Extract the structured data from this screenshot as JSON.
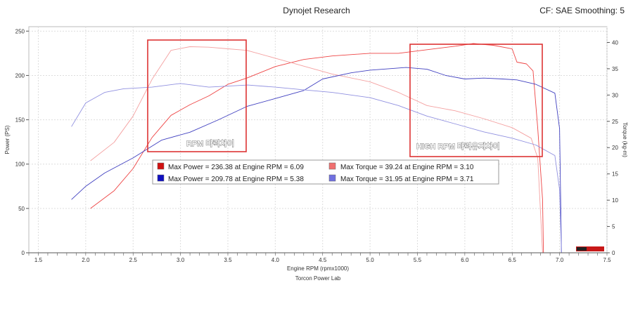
{
  "header": {
    "title": "Dynojet Research",
    "settings": "CF: SAE Smoothing: 5"
  },
  "chart_data": {
    "type": "line",
    "xlabel": "Engine RPM (rpmx1000)",
    "xlabel2": "Torcon Power Lab",
    "ylabel_left": "Power (PS)",
    "ylabel_right": "Torque (kg-m)",
    "xlim": [
      1.4,
      7.5
    ],
    "ylim_left": [
      0,
      255
    ],
    "ylim_right": [
      0,
      43
    ],
    "x_ticks": [
      "1.5",
      "2.0",
      "2.5",
      "3.0",
      "3.5",
      "4.0",
      "4.5",
      "5.0",
      "5.5",
      "6.0",
      "6.5",
      "7.0",
      "7.5"
    ],
    "y_ticks_left": [
      "0",
      "50",
      "100",
      "150",
      "200",
      "250"
    ],
    "y_ticks_right": [
      "0",
      "5",
      "10",
      "15",
      "20",
      "25",
      "30",
      "35",
      "40"
    ],
    "grid": true,
    "legend": [
      {
        "text": "Max Power = 236.38 at Engine RPM = 6.09",
        "color": "#d01010"
      },
      {
        "text": "Max Torque = 39.24 at Engine RPM = 3.10",
        "color": "#f07070"
      },
      {
        "text": "Max Power = 209.78 at Engine RPM = 5.38",
        "color": "#1010c0"
      },
      {
        "text": "Max Torque = 31.95 at Engine RPM = 3.71",
        "color": "#7070e0"
      }
    ],
    "annotations": [
      "RPM 마력차이",
      "HIGH RPM 마력유지차이"
    ],
    "series": [
      {
        "axis": "left",
        "color": "#ee4444",
        "points": [
          [
            2.05,
            50
          ],
          [
            2.3,
            70
          ],
          [
            2.5,
            95
          ],
          [
            2.7,
            130
          ],
          [
            2.9,
            155
          ],
          [
            3.1,
            167
          ],
          [
            3.3,
            177
          ],
          [
            3.5,
            190
          ],
          [
            3.7,
            197
          ],
          [
            4.0,
            210
          ],
          [
            4.3,
            218
          ],
          [
            4.6,
            222
          ],
          [
            5.0,
            225
          ],
          [
            5.3,
            225
          ],
          [
            5.6,
            229
          ],
          [
            5.9,
            233
          ],
          [
            6.09,
            236
          ],
          [
            6.3,
            234
          ],
          [
            6.5,
            230
          ],
          [
            6.55,
            215
          ],
          [
            6.65,
            213
          ],
          [
            6.72,
            205
          ],
          [
            6.77,
            140
          ],
          [
            6.82,
            60
          ],
          [
            6.83,
            0
          ]
        ]
      },
      {
        "axis": "right",
        "color": "#f4a0a0",
        "points": [
          [
            2.05,
            17.5
          ],
          [
            2.3,
            21
          ],
          [
            2.5,
            26
          ],
          [
            2.7,
            33
          ],
          [
            2.9,
            38.5
          ],
          [
            3.1,
            39.2
          ],
          [
            3.3,
            39.1
          ],
          [
            3.5,
            38.8
          ],
          [
            3.7,
            38.5
          ],
          [
            4.0,
            37
          ],
          [
            4.3,
            35.5
          ],
          [
            4.6,
            34
          ],
          [
            5.0,
            32.5
          ],
          [
            5.3,
            30.5
          ],
          [
            5.6,
            28
          ],
          [
            5.9,
            27
          ],
          [
            6.2,
            25.5
          ],
          [
            6.5,
            23.8
          ],
          [
            6.7,
            21.8
          ],
          [
            6.77,
            18
          ],
          [
            6.82,
            0
          ]
        ]
      },
      {
        "axis": "left",
        "color": "#4040c0",
        "points": [
          [
            1.85,
            60
          ],
          [
            2.0,
            75
          ],
          [
            2.2,
            90
          ],
          [
            2.5,
            107
          ],
          [
            2.8,
            127
          ],
          [
            3.1,
            136
          ],
          [
            3.4,
            150
          ],
          [
            3.7,
            165
          ],
          [
            4.0,
            174
          ],
          [
            4.3,
            183
          ],
          [
            4.5,
            196
          ],
          [
            4.8,
            203
          ],
          [
            5.0,
            206
          ],
          [
            5.38,
            209
          ],
          [
            5.6,
            207
          ],
          [
            5.8,
            200
          ],
          [
            6.0,
            196
          ],
          [
            6.2,
            197
          ],
          [
            6.4,
            196
          ],
          [
            6.55,
            195
          ],
          [
            6.75,
            190
          ],
          [
            6.95,
            180
          ],
          [
            7.0,
            140
          ],
          [
            7.02,
            0
          ]
        ]
      },
      {
        "axis": "right",
        "color": "#9090e0",
        "points": [
          [
            1.85,
            24
          ],
          [
            2.0,
            28.5
          ],
          [
            2.2,
            30.5
          ],
          [
            2.4,
            31.2
          ],
          [
            2.7,
            31.5
          ],
          [
            3.0,
            32.2
          ],
          [
            3.3,
            31.5
          ],
          [
            3.71,
            31.9
          ],
          [
            4.0,
            31.5
          ],
          [
            4.3,
            31
          ],
          [
            4.6,
            30.5
          ],
          [
            5.0,
            29.5
          ],
          [
            5.3,
            28
          ],
          [
            5.6,
            26
          ],
          [
            5.9,
            24.5
          ],
          [
            6.2,
            23
          ],
          [
            6.5,
            21.8
          ],
          [
            6.75,
            20.5
          ],
          [
            6.95,
            18.5
          ],
          [
            7.0,
            12
          ],
          [
            7.02,
            0
          ]
        ]
      }
    ]
  }
}
